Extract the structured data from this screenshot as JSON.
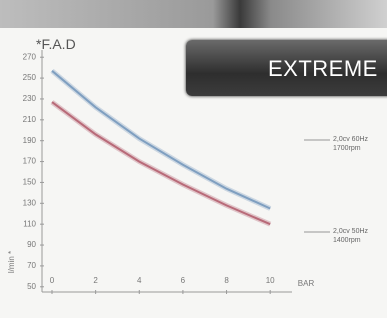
{
  "chart_data": {
    "type": "line",
    "title": "*F.A.D",
    "banner": "EXTREME",
    "xlabel": "BAR",
    "ylabel": "l/min *",
    "x": [
      0,
      2,
      4,
      6,
      8,
      10
    ],
    "series": [
      {
        "name": "2,0cv 60Hz 1700rpm",
        "color": "#7f9fc0",
        "values": [
          257,
          222,
          192,
          167,
          144,
          125
        ]
      },
      {
        "name": "2,0cv 50Hz 1400rpm",
        "color": "#b86a78",
        "values": [
          227,
          196,
          170,
          148,
          128,
          110
        ]
      }
    ],
    "xlim": [
      0,
      11
    ],
    "xticks": [
      0,
      2,
      4,
      6,
      8,
      10
    ],
    "ylim": [
      45,
      275
    ],
    "yticks": [
      50,
      70,
      90,
      110,
      130,
      150,
      170,
      190,
      210,
      230,
      250,
      270
    ]
  }
}
